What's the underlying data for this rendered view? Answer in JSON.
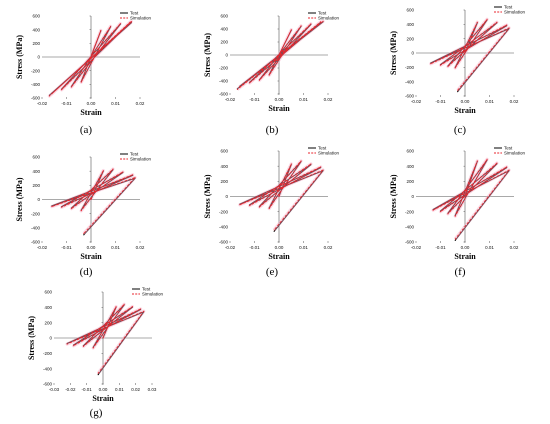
{
  "legend": {
    "test": "Test",
    "simulation": "Simulation"
  },
  "axis_labels": {
    "x": "Strain",
    "y": "Stress (MPa)"
  },
  "colors": {
    "test": "#000000",
    "simulation": "#e8262d",
    "band": "#f7a8c4"
  },
  "chart_data": [
    {
      "type": "line",
      "panel_label": "(a)",
      "xlabel": "Strain",
      "ylabel": "Stress (MPa)",
      "xlim": [
        -0.02,
        0.02
      ],
      "ylim": [
        -600,
        600
      ],
      "xticks": [
        -0.02,
        -0.01,
        0.0,
        0.01,
        0.02
      ],
      "yticks": [
        -600,
        -400,
        -200,
        0,
        200,
        400,
        600
      ],
      "xtick_labels": [
        "-0.02",
        "-0.01",
        "0.00",
        "0.01",
        "0.02"
      ],
      "ytick_labels": [
        "-600",
        "-400",
        "-200",
        "0",
        "200",
        "400",
        "600"
      ],
      "legend_position": "top-right",
      "series": [
        {
          "name": "Test",
          "style": "solid",
          "x": [
            0,
            0.004,
            -0.004,
            0.008,
            -0.008,
            0.012,
            -0.012,
            0.016,
            -0.016,
            0.0165,
            -0.017,
            0.0165
          ],
          "y": [
            0,
            380,
            -360,
            440,
            -430,
            480,
            -470,
            500,
            -530,
            510,
            -560,
            500
          ]
        },
        {
          "name": "Simulation",
          "style": "dashed",
          "x": [
            0,
            0.004,
            -0.004,
            0.008,
            -0.008,
            0.012,
            -0.012,
            0.016,
            -0.016,
            0.0165,
            -0.017,
            0.0165
          ],
          "y": [
            0,
            390,
            -370,
            450,
            -440,
            490,
            -480,
            510,
            -540,
            520,
            -570,
            510
          ]
        }
      ]
    },
    {
      "type": "line",
      "panel_label": "(b)",
      "xlabel": "Strain",
      "ylabel": "Stress (MPa)",
      "xlim": [
        -0.02,
        0.02
      ],
      "ylim": [
        -600,
        600
      ],
      "xticks": [
        -0.02,
        -0.01,
        0.0,
        0.01,
        0.02
      ],
      "yticks": [
        -600,
        -400,
        -200,
        0,
        200,
        400,
        600
      ],
      "xtick_labels": [
        "-0.02",
        "-0.01",
        "0.00",
        "0.01",
        "0.02"
      ],
      "ytick_labels": [
        "-600",
        "-400",
        "-200",
        "0",
        "200",
        "400",
        "600"
      ],
      "legend_position": "top-right",
      "series": [
        {
          "name": "Test",
          "style": "solid",
          "x": [
            0,
            0.005,
            -0.004,
            0.009,
            -0.008,
            0.013,
            -0.012,
            0.017,
            -0.016,
            0.018,
            -0.017
          ],
          "y": [
            0,
            380,
            -300,
            440,
            -380,
            470,
            -420,
            500,
            -480,
            510,
            -520
          ]
        },
        {
          "name": "Simulation",
          "style": "dashed",
          "x": [
            0,
            0.005,
            -0.004,
            0.009,
            -0.008,
            0.013,
            -0.012,
            0.017,
            -0.016,
            0.018,
            -0.017
          ],
          "y": [
            0,
            390,
            -310,
            450,
            -390,
            480,
            -430,
            510,
            -490,
            520,
            -530
          ]
        }
      ]
    },
    {
      "type": "line",
      "panel_label": "(c)",
      "xlabel": "Strain",
      "ylabel": "Stress (MPa)",
      "xlim": [
        -0.02,
        0.02
      ],
      "ylim": [
        -600,
        600
      ],
      "xticks": [
        -0.02,
        -0.01,
        0.0,
        0.01,
        0.02
      ],
      "yticks": [
        -600,
        -400,
        -200,
        0,
        200,
        400,
        600
      ],
      "xtick_labels": [
        "-0.02",
        "-0.01",
        "0.00",
        "0.01",
        "0.02"
      ],
      "ytick_labels": [
        "-600",
        "-400",
        "-200",
        "0",
        "200",
        "400",
        "600"
      ],
      "legend_position": "top-right",
      "series": [
        {
          "name": "Test",
          "style": "solid",
          "x": [
            0,
            0.005,
            -0.004,
            0.009,
            -0.007,
            0.013,
            -0.01,
            0.017,
            -0.014,
            0.018,
            -0.003
          ],
          "y": [
            0,
            420,
            -200,
            460,
            -180,
            420,
            -160,
            380,
            -140,
            340,
            -540
          ]
        },
        {
          "name": "Simulation",
          "style": "dashed",
          "x": [
            0,
            0.005,
            -0.004,
            0.009,
            -0.007,
            0.013,
            -0.01,
            0.017,
            -0.014,
            0.018,
            -0.003
          ],
          "y": [
            0,
            430,
            -210,
            470,
            -190,
            430,
            -170,
            390,
            -150,
            350,
            -520
          ]
        }
      ]
    },
    {
      "type": "line",
      "panel_label": "(d)",
      "xlabel": "Strain",
      "ylabel": "Stress (MPa)",
      "xlim": [
        -0.02,
        0.02
      ],
      "ylim": [
        -600,
        600
      ],
      "xticks": [
        -0.02,
        -0.01,
        0.0,
        0.01,
        0.02
      ],
      "yticks": [
        -600,
        -400,
        -200,
        0,
        200,
        400,
        600
      ],
      "xtick_labels": [
        "-0.02",
        "-0.01",
        "0.00",
        "0.01",
        "0.02"
      ],
      "ytick_labels": [
        "-600",
        "-400",
        "-200",
        "0",
        "200",
        "400",
        "600"
      ],
      "legend_position": "top-right",
      "series": [
        {
          "name": "Test",
          "style": "solid",
          "x": [
            0,
            0.005,
            -0.004,
            0.009,
            -0.008,
            0.013,
            -0.012,
            0.017,
            -0.016,
            0.018,
            -0.003
          ],
          "y": [
            0,
            400,
            -150,
            420,
            -120,
            380,
            -100,
            340,
            -90,
            300,
            -500
          ]
        },
        {
          "name": "Simulation",
          "style": "dashed",
          "x": [
            0,
            0.005,
            -0.004,
            0.009,
            -0.008,
            0.013,
            -0.012,
            0.017,
            -0.016,
            0.018,
            -0.003
          ],
          "y": [
            0,
            410,
            -160,
            430,
            -130,
            390,
            -110,
            350,
            -100,
            310,
            -480
          ]
        }
      ]
    },
    {
      "type": "line",
      "panel_label": "(e)",
      "xlabel": "Strain",
      "ylabel": "Stress (MPa)",
      "xlim": [
        -0.02,
        0.02
      ],
      "ylim": [
        -600,
        600
      ],
      "xticks": [
        -0.02,
        -0.01,
        0.0,
        0.01,
        0.02
      ],
      "yticks": [
        -600,
        -400,
        -200,
        0,
        200,
        400,
        600
      ],
      "xtick_labels": [
        "-0.02",
        "-0.01",
        "0.00",
        "0.01",
        "0.02"
      ],
      "ytick_labels": [
        "-600",
        "-400",
        "-200",
        "0",
        "200",
        "400",
        "600"
      ],
      "legend_position": "top-right",
      "series": [
        {
          "name": "Test",
          "style": "solid",
          "x": [
            0,
            0.005,
            -0.004,
            0.009,
            -0.008,
            0.013,
            -0.012,
            0.017,
            -0.016,
            0.018,
            -0.002
          ],
          "y": [
            0,
            420,
            -150,
            460,
            -130,
            420,
            -110,
            380,
            -100,
            340,
            -460
          ]
        },
        {
          "name": "Simulation",
          "style": "dashed",
          "x": [
            0,
            0.005,
            -0.004,
            0.009,
            -0.008,
            0.013,
            -0.012,
            0.017,
            -0.016,
            0.018,
            -0.002
          ],
          "y": [
            0,
            430,
            -160,
            470,
            -140,
            430,
            -120,
            390,
            -110,
            350,
            -440
          ]
        }
      ]
    },
    {
      "type": "line",
      "panel_label": "(f)",
      "xlabel": "Strain",
      "ylabel": "Stress (MPa)",
      "xlim": [
        -0.02,
        0.02
      ],
      "ylim": [
        -600,
        600
      ],
      "xticks": [
        -0.02,
        -0.01,
        0.0,
        0.01,
        0.02
      ],
      "yticks": [
        -600,
        -400,
        -200,
        0,
        200,
        400,
        600
      ],
      "xtick_labels": [
        "-0.02",
        "-0.01",
        "0.00",
        "0.01",
        "0.02"
      ],
      "ytick_labels": [
        "-600",
        "-400",
        "-200",
        "0",
        "200",
        "400",
        "600"
      ],
      "legend_position": "top-right",
      "series": [
        {
          "name": "Test",
          "style": "solid",
          "x": [
            0,
            0.005,
            -0.004,
            0.009,
            -0.007,
            0.013,
            -0.01,
            0.017,
            -0.013,
            0.018,
            -0.004
          ],
          "y": [
            0,
            460,
            -250,
            480,
            -220,
            430,
            -190,
            380,
            -170,
            340,
            -580
          ]
        },
        {
          "name": "Simulation",
          "style": "dashed",
          "x": [
            0,
            0.005,
            -0.004,
            0.009,
            -0.007,
            0.013,
            -0.01,
            0.017,
            -0.013,
            0.018,
            -0.004
          ],
          "y": [
            0,
            470,
            -260,
            490,
            -230,
            440,
            -200,
            390,
            -180,
            350,
            -560
          ]
        }
      ]
    },
    {
      "type": "line",
      "panel_label": "(g)",
      "xlabel": "Strain",
      "ylabel": "Stress (MPa)",
      "xlim": [
        -0.03,
        0.03
      ],
      "ylim": [
        -600,
        600
      ],
      "xticks": [
        -0.03,
        -0.02,
        -0.01,
        0.0,
        0.01,
        0.02,
        0.03
      ],
      "yticks": [
        -600,
        -400,
        -200,
        0,
        200,
        400,
        600
      ],
      "xtick_labels": [
        "-0.03",
        "-0.02",
        "-0.01",
        "0.00",
        "0.01",
        "0.02",
        "0.03"
      ],
      "ytick_labels": [
        "-600",
        "-400",
        "-200",
        "0",
        "200",
        "400",
        "600"
      ],
      "legend_position": "top-right",
      "series": [
        {
          "name": "Test",
          "style": "solid",
          "x": [
            0,
            0.008,
            -0.006,
            0.013,
            -0.012,
            0.018,
            -0.018,
            0.023,
            -0.022,
            0.025,
            -0.003
          ],
          "y": [
            0,
            400,
            -120,
            430,
            -100,
            400,
            -90,
            370,
            -70,
            340,
            -480
          ]
        },
        {
          "name": "Simulation",
          "style": "dashed",
          "x": [
            0,
            0.008,
            -0.006,
            0.013,
            -0.012,
            0.018,
            -0.018,
            0.023,
            -0.022,
            0.025,
            -0.003
          ],
          "y": [
            0,
            410,
            -130,
            440,
            -110,
            410,
            -100,
            380,
            -80,
            350,
            -460
          ]
        }
      ]
    }
  ]
}
